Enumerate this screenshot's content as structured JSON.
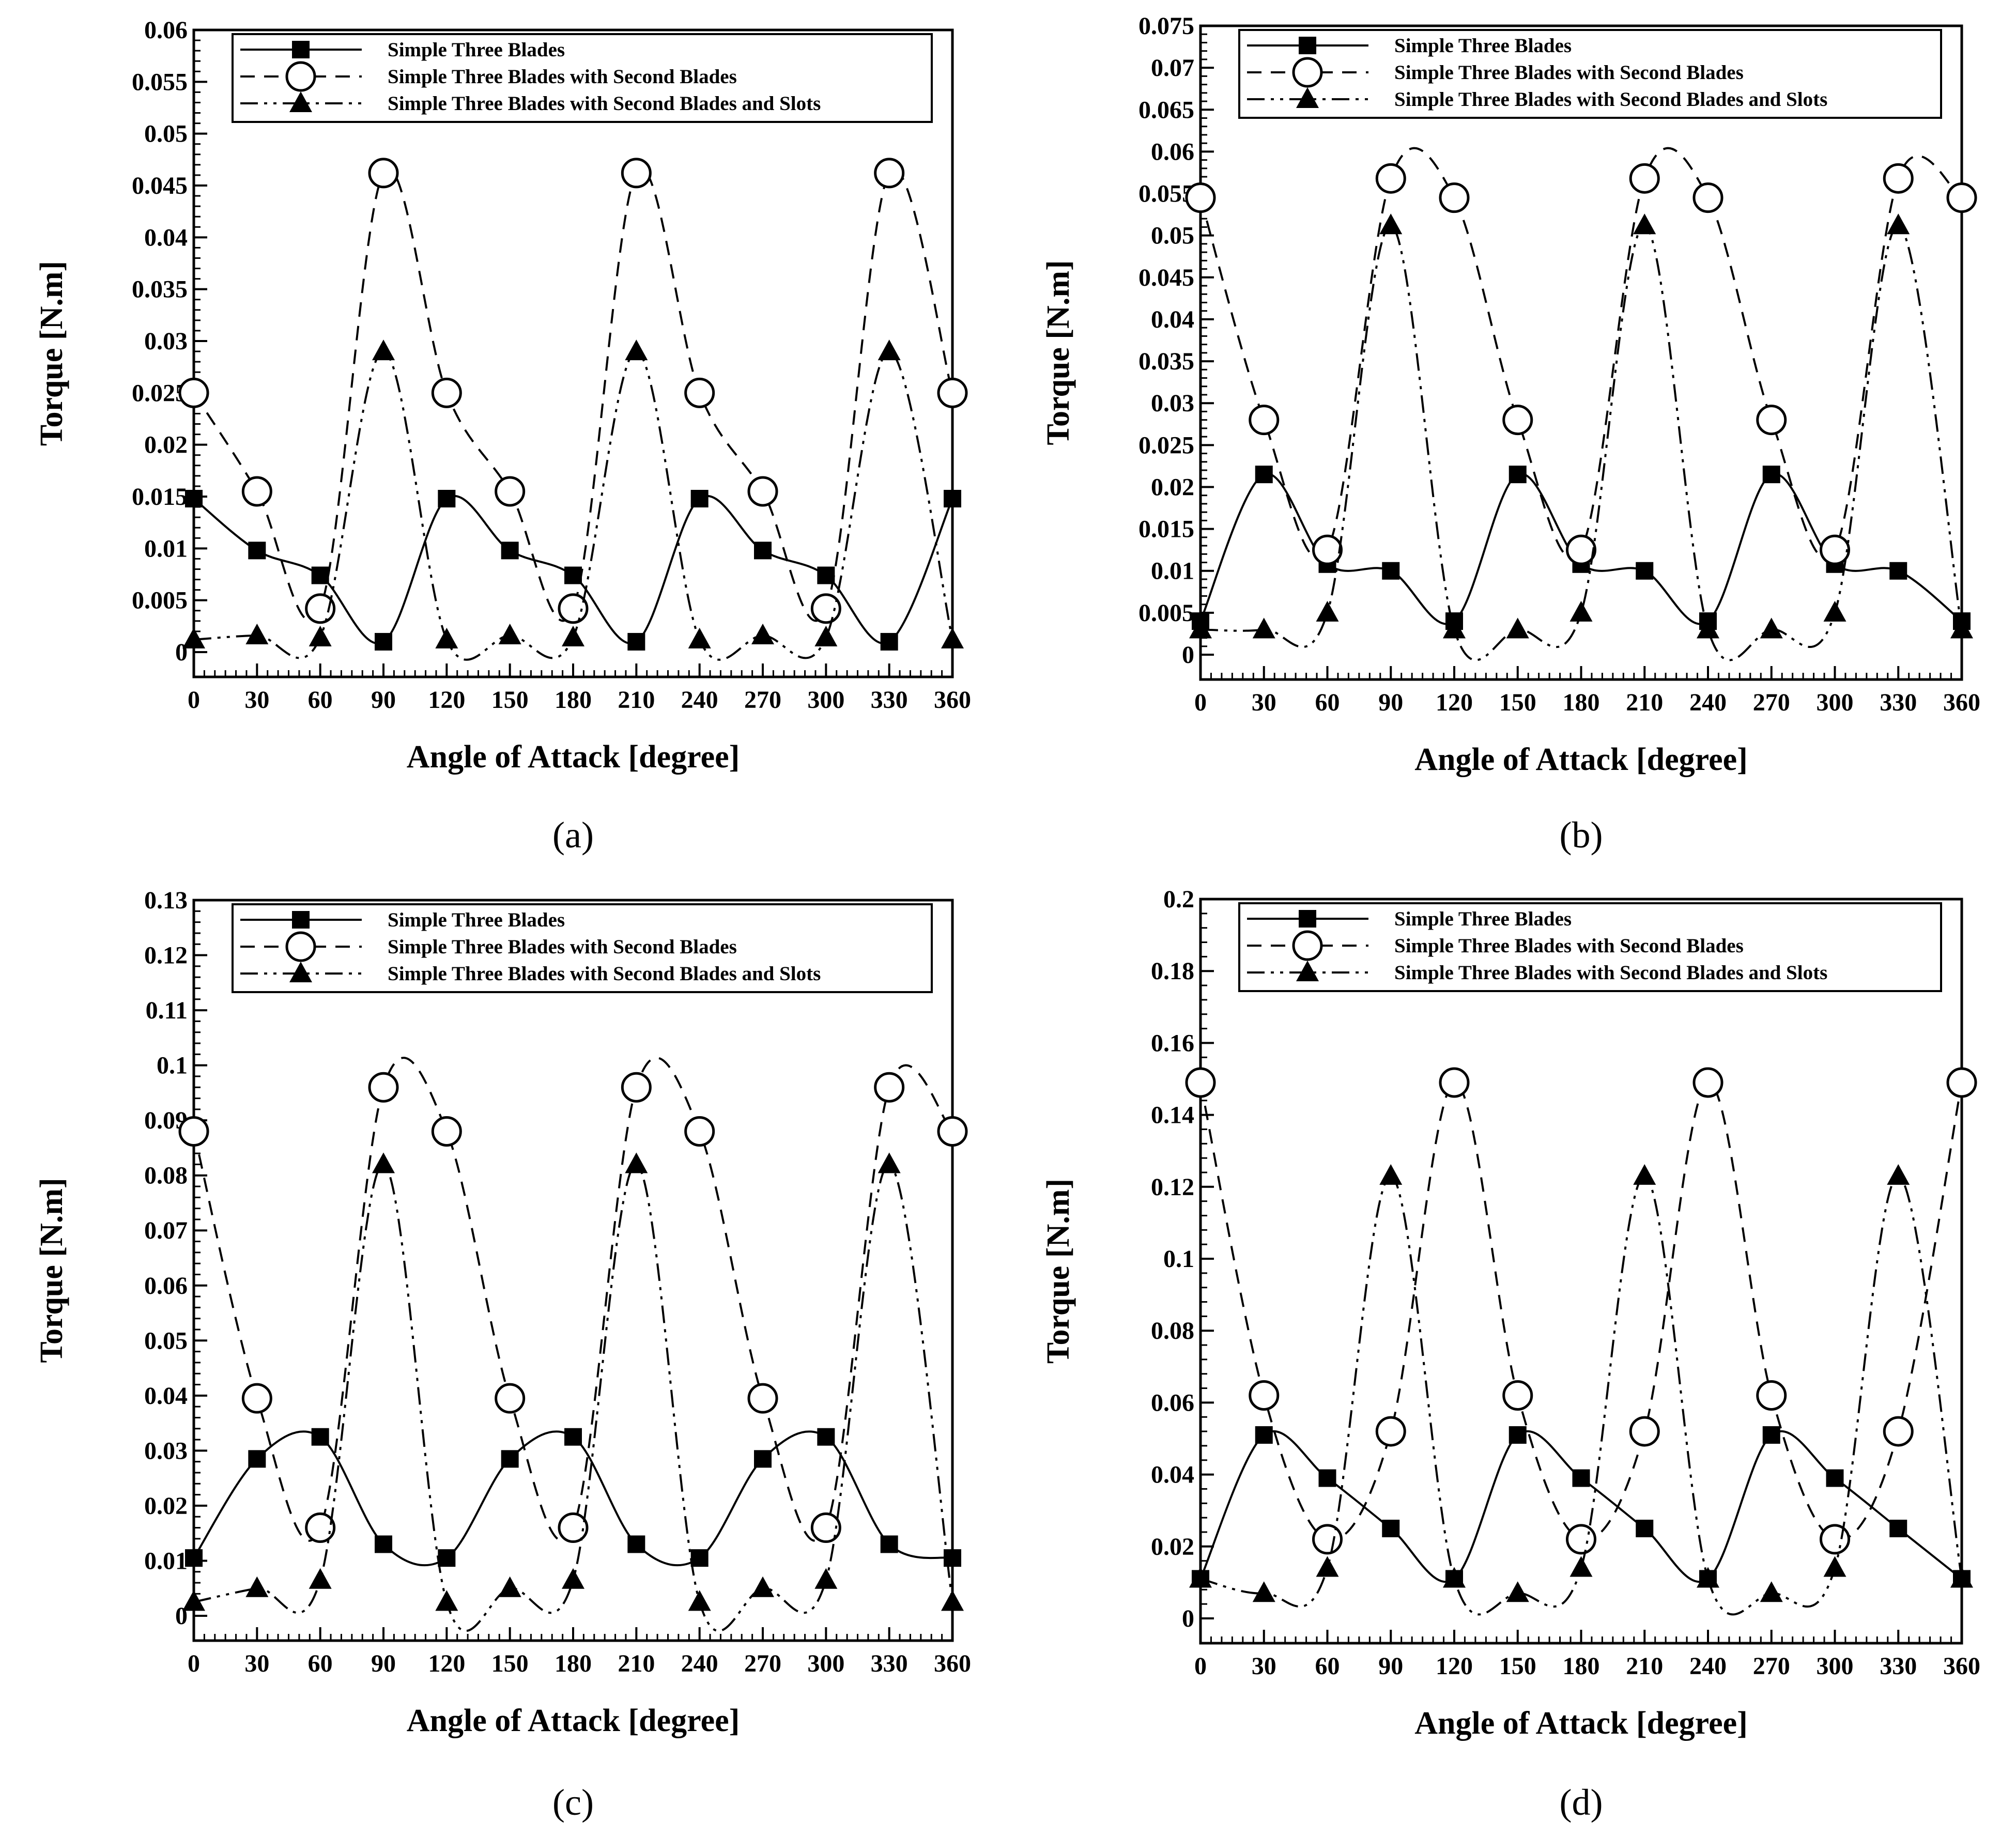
{
  "chart_data": [
    {
      "type": "line",
      "caption": "(a)",
      "xlabel": "Angle of Attack [degree]",
      "ylabel": "Torque [N.m]",
      "xlim": [
        0,
        360
      ],
      "ylim": [
        0,
        0.06
      ],
      "x_ticks": [
        0,
        30,
        60,
        90,
        120,
        150,
        180,
        210,
        240,
        270,
        300,
        330,
        360
      ],
      "y_ticks": [
        "0",
        "0.005",
        "0.01",
        "0.015",
        "0.02",
        "0.025",
        "0.03",
        "0.035",
        "0.04",
        "0.045",
        "0.05",
        "0.055",
        "0.06"
      ],
      "legend": [
        "Simple Three Blades",
        "Simple Three Blades with Second Blades",
        "Simple Three Blades with Second Blades and Slots"
      ],
      "x": [
        0,
        30,
        60,
        90,
        120,
        150,
        180,
        210,
        240,
        270,
        300,
        330,
        360
      ],
      "series": [
        {
          "name": "Simple Three Blades",
          "values": [
            0.0148,
            0.0098,
            0.0074,
            0.001,
            0.0148,
            0.0098,
            0.0074,
            0.001,
            0.0148,
            0.0098,
            0.0074,
            0.001,
            0.0148
          ]
        },
        {
          "name": "Simple Three Blades with Second Blades",
          "values": [
            0.025,
            0.0155,
            0.0042,
            0.0462,
            0.025,
            0.0155,
            0.0042,
            0.0462,
            0.025,
            0.0155,
            0.0042,
            0.0462,
            0.025
          ]
        },
        {
          "name": "Simple Three Blades with Second Blades and Slots",
          "values": [
            0.0012,
            0.0016,
            0.0014,
            0.029,
            0.0012,
            0.0016,
            0.0014,
            0.029,
            0.0012,
            0.0016,
            0.0014,
            0.029,
            0.0012
          ]
        }
      ]
    },
    {
      "type": "line",
      "caption": "(b)",
      "xlabel": "Angle of Attack [degree]",
      "ylabel": "Torque [N.m]",
      "xlim": [
        0,
        360
      ],
      "ylim": [
        0,
        0.075
      ],
      "x_ticks": [
        0,
        30,
        60,
        90,
        120,
        150,
        180,
        210,
        240,
        270,
        300,
        330,
        360
      ],
      "y_ticks": [
        "0",
        "0.005",
        "0.01",
        "0.015",
        "0.02",
        "0.025",
        "0.03",
        "0.035",
        "0.04",
        "0.045",
        "0.05",
        "0.055",
        "0.06",
        "0.065",
        "0.07",
        "0.075"
      ],
      "legend": [
        "Simple Three Blades",
        "Simple Three Blades with Second Blades",
        "Simple Three Blades with Second Blades and Slots"
      ],
      "x": [
        0,
        30,
        60,
        90,
        120,
        150,
        180,
        210,
        240,
        270,
        300,
        330,
        360
      ],
      "series": [
        {
          "name": "Simple Three Blades",
          "values": [
            0.004,
            0.0215,
            0.0108,
            0.01,
            0.004,
            0.0215,
            0.0108,
            0.01,
            0.004,
            0.0215,
            0.0108,
            0.01,
            0.004
          ]
        },
        {
          "name": "Simple Three Blades with Second Blades",
          "values": [
            0.0545,
            0.028,
            0.0125,
            0.0568,
            0.0545,
            0.028,
            0.0125,
            0.0568,
            0.0545,
            0.028,
            0.0125,
            0.0568,
            0.0545
          ]
        },
        {
          "name": "Simple Three Blades with Second Blades and Slots",
          "values": [
            0.003,
            0.003,
            0.005,
            0.0512,
            0.003,
            0.003,
            0.005,
            0.0512,
            0.003,
            0.003,
            0.005,
            0.0512,
            0.003
          ]
        }
      ]
    },
    {
      "type": "line",
      "caption": "(c)",
      "xlabel": "Angle of Attack [degree]",
      "ylabel": "Torque [N.m]",
      "xlim": [
        0,
        360
      ],
      "ylim": [
        0,
        0.13
      ],
      "x_ticks": [
        0,
        30,
        60,
        90,
        120,
        150,
        180,
        210,
        240,
        270,
        300,
        330,
        360
      ],
      "y_ticks": [
        "0",
        "0.01",
        "0.02",
        "0.03",
        "0.04",
        "0.05",
        "0.06",
        "0.07",
        "0.08",
        "0.09",
        "0.1",
        "0.11",
        "0.12",
        "0.13"
      ],
      "legend": [
        "Simple Three Blades",
        "Simple Three Blades with Second Blades",
        "Simple Three Blades with Second Blades and Slots"
      ],
      "x": [
        0,
        30,
        60,
        90,
        120,
        150,
        180,
        210,
        240,
        270,
        300,
        330,
        360
      ],
      "series": [
        {
          "name": "Simple Three Blades",
          "values": [
            0.0105,
            0.0285,
            0.0325,
            0.013,
            0.0105,
            0.0285,
            0.0325,
            0.013,
            0.0105,
            0.0285,
            0.0325,
            0.013,
            0.0105
          ]
        },
        {
          "name": "Simple Three Blades with Second Blades",
          "values": [
            0.088,
            0.0395,
            0.016,
            0.096,
            0.088,
            0.0395,
            0.016,
            0.096,
            0.088,
            0.0395,
            0.016,
            0.096,
            0.088
          ]
        },
        {
          "name": "Simple Three Blades with Second Blades and Slots",
          "values": [
            0.0025,
            0.005,
            0.0065,
            0.082,
            0.0025,
            0.005,
            0.0065,
            0.082,
            0.0025,
            0.005,
            0.0065,
            0.082,
            0.0025
          ]
        }
      ]
    },
    {
      "type": "line",
      "caption": "(d)",
      "xlabel": "Angle of Attack [degree]",
      "ylabel": "Torque [N.m]",
      "xlim": [
        0,
        360
      ],
      "ylim": [
        0,
        0.2
      ],
      "x_ticks": [
        0,
        30,
        60,
        90,
        120,
        150,
        180,
        210,
        240,
        270,
        300,
        330,
        360
      ],
      "y_ticks": [
        "0",
        "0.02",
        "0.04",
        "0.06",
        "0.08",
        "0.1",
        "0.12",
        "0.14",
        "0.16",
        "0.18",
        "0.2"
      ],
      "legend": [
        "Simple Three Blades",
        "Simple Three Blades with Second Blades",
        "Simple Three Blades with Second Blades and Slots"
      ],
      "x": [
        0,
        30,
        60,
        90,
        120,
        150,
        180,
        210,
        240,
        270,
        300,
        330,
        360
      ],
      "series": [
        {
          "name": "Simple Three Blades",
          "values": [
            0.011,
            0.051,
            0.039,
            0.025,
            0.011,
            0.051,
            0.039,
            0.025,
            0.011,
            0.051,
            0.039,
            0.025,
            0.011
          ]
        },
        {
          "name": "Simple Three Blades with Second Blades",
          "values": [
            0.149,
            0.062,
            0.022,
            0.052,
            0.149,
            0.062,
            0.022,
            0.052,
            0.149,
            0.062,
            0.022,
            0.052,
            0.149
          ]
        },
        {
          "name": "Simple Three Blades with Second Blades and Slots",
          "values": [
            0.011,
            0.007,
            0.014,
            0.123,
            0.011,
            0.007,
            0.014,
            0.123,
            0.011,
            0.007,
            0.014,
            0.123,
            0.011
          ]
        }
      ]
    }
  ]
}
